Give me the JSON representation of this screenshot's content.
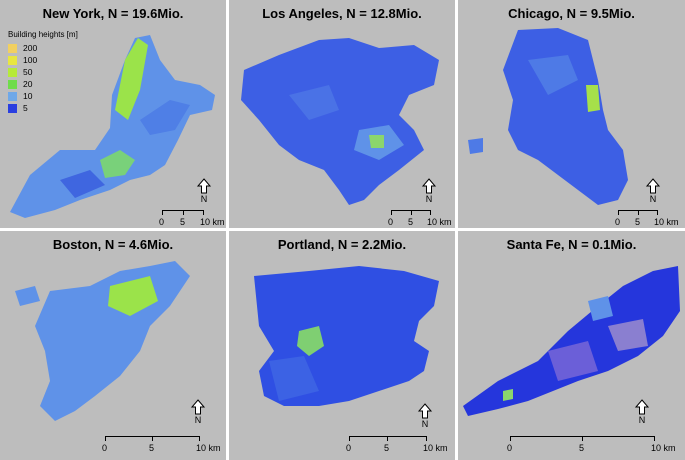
{
  "panels": [
    {
      "title": "New York, N = 19.6Mio.",
      "scale": [
        "0",
        "5",
        "10 km"
      ],
      "north": "N"
    },
    {
      "title": "Los Angeles, N = 12.8Mio.",
      "scale": [
        "0",
        "5",
        "10 km"
      ],
      "north": "N"
    },
    {
      "title": "Chicago, N = 9.5Mio.",
      "scale": [
        "0",
        "5",
        "10 km"
      ],
      "north": "N"
    },
    {
      "title": "Boston, N = 4.6Mio.",
      "scale": [
        "0",
        "5",
        "10 km"
      ],
      "north": "N"
    },
    {
      "title": "Portland, N = 2.2Mio.",
      "scale": [
        "0",
        "5",
        "10 km"
      ],
      "north": "N"
    },
    {
      "title": "Santa Fe, N = 0.1Mio.",
      "scale": [
        "0",
        "5",
        "10 km"
      ],
      "north": "N"
    }
  ],
  "legend": {
    "title": "Building heights [m]",
    "items": [
      {
        "label": "200",
        "color": "#f2d060"
      },
      {
        "label": "100",
        "color": "#e8e640"
      },
      {
        "label": "50",
        "color": "#b6ea3a"
      },
      {
        "label": "20",
        "color": "#6fdc4a"
      },
      {
        "label": "10",
        "color": "#6fa8e8"
      },
      {
        "label": "5",
        "color": "#2a3fe0"
      }
    ]
  },
  "colors": {
    "background": "#bdbdbd",
    "low": "#2f52e6",
    "mid": "#5f92e8",
    "high": "#9be34a"
  }
}
